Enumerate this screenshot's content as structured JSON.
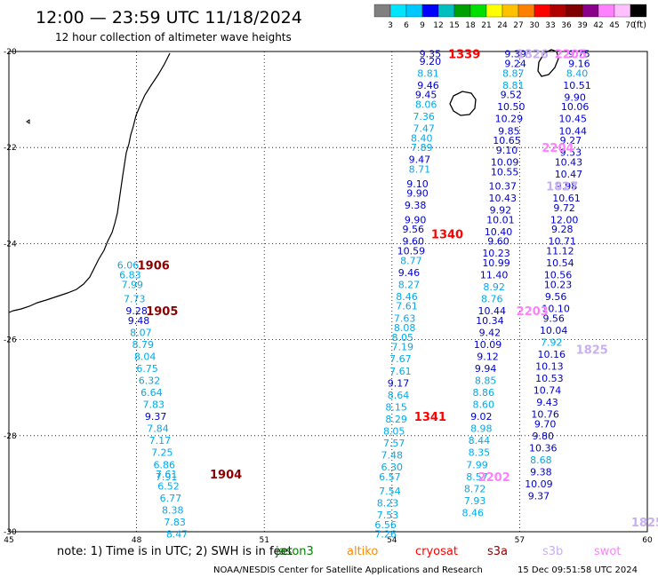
{
  "header": {
    "title": "12:00 — 23:59 UTC 11/18/2024",
    "subtitle": "12 hour collection of altimeter wave heights"
  },
  "colorbar": {
    "unit": "(ft)",
    "labels": [
      "3",
      "6",
      "9",
      "12",
      "15",
      "18",
      "21",
      "24",
      "27",
      "30",
      "33",
      "36",
      "39",
      "42",
      "45",
      "70"
    ],
    "colors": [
      "#808080",
      "#00e5ff",
      "#00c8ff",
      "#0000ff",
      "#00bfbf",
      "#00a000",
      "#00e000",
      "#ffff00",
      "#ffc000",
      "#ff8000",
      "#ff0000",
      "#b00000",
      "#800000",
      "#8b008b",
      "#ff80ff",
      "#ffc0ff",
      "#000000"
    ]
  },
  "footer": {
    "note": "note:  1) Time is in UTC; 2) SWH is in feet",
    "credit": "NOAA/NESDIS Center for Satellite Applications and Research",
    "timestamp": "15 Dec 09:51:58 UTC 2024",
    "legend": [
      {
        "name": "jason3",
        "color": "#008000"
      },
      {
        "name": "altiko",
        "color": "#ff8c00"
      },
      {
        "name": "cryosat",
        "color": "#ff0000"
      },
      {
        "name": "s3a",
        "color": "#8b0000"
      },
      {
        "name": "s3b",
        "color": "#c8b0f0"
      },
      {
        "name": "swot",
        "color": "#ff80ff"
      }
    ]
  },
  "chart_data": {
    "type": "scatter",
    "xlim": [
      45,
      60
    ],
    "ylim": [
      -30,
      -20
    ],
    "x_ticks": [
      45,
      48,
      51,
      54,
      57,
      60
    ],
    "y_ticks": [
      -20,
      -22,
      -24,
      -26,
      -28,
      -30
    ],
    "y_tick_labels": [
      "-20",
      "-22",
      "-24",
      "-26",
      "-28",
      "-30"
    ],
    "grid": true,
    "track_labels": [
      {
        "text": "1906",
        "lon": 48.4,
        "lat": -24.45,
        "color": "#8b0000"
      },
      {
        "text": "1905",
        "lon": 48.6,
        "lat": -25.4,
        "color": "#8b0000"
      },
      {
        "text": "1904",
        "lon": 50.1,
        "lat": -28.8,
        "color": "#8b0000"
      },
      {
        "text": "1339",
        "lon": 55.7,
        "lat": -20.05,
        "color": "#ff0000"
      },
      {
        "text": "1340",
        "lon": 55.3,
        "lat": -23.8,
        "color": "#ff0000"
      },
      {
        "text": "1341",
        "lon": 54.9,
        "lat": -27.6,
        "color": "#ff0000"
      },
      {
        "text": "1826",
        "lon": 57.3,
        "lat": -20.05,
        "color": "#c8b0f0"
      },
      {
        "text": "2205",
        "lon": 58.2,
        "lat": -20.05,
        "color": "#ff80ff"
      },
      {
        "text": "2204",
        "lon": 57.9,
        "lat": -22.0,
        "color": "#ff80ff"
      },
      {
        "text": "1827",
        "lon": 58.0,
        "lat": -22.8,
        "color": "#c8b0f0"
      },
      {
        "text": "2203",
        "lon": 57.3,
        "lat": -25.4,
        "color": "#ff80ff"
      },
      {
        "text": "1825",
        "lon": 58.7,
        "lat": -26.2,
        "color": "#c8b0f0"
      },
      {
        "text": "2202",
        "lon": 56.4,
        "lat": -28.85,
        "color": "#ff80ff"
      },
      {
        "text": "1825",
        "lon": 60.0,
        "lat": -29.8,
        "color": "#c8b0f0"
      }
    ],
    "series": [
      {
        "name": "1906",
        "points": [
          {
            "lon": 47.8,
            "lat": -24.45,
            "v": 6.06
          },
          {
            "lon": 47.85,
            "lat": -24.65,
            "v": 6.83
          },
          {
            "lon": 47.9,
            "lat": -24.85,
            "v": 7.99
          },
          {
            "lon": 47.95,
            "lat": -25.15,
            "v": 7.73
          },
          {
            "lon": 48.0,
            "lat": -25.4,
            "v": 9.28
          },
          {
            "lon": 48.05,
            "lat": -25.6,
            "v": 9.48
          },
          {
            "lon": 48.1,
            "lat": -25.85,
            "v": 8.07
          },
          {
            "lon": 48.15,
            "lat": -26.1,
            "v": 8.79
          },
          {
            "lon": 48.2,
            "lat": -26.35,
            "v": 8.04
          },
          {
            "lon": 48.25,
            "lat": -26.6,
            "v": 6.75
          },
          {
            "lon": 48.3,
            "lat": -26.85,
            "v": 6.32
          },
          {
            "lon": 48.35,
            "lat": -27.1,
            "v": 6.64
          },
          {
            "lon": 48.4,
            "lat": -27.35,
            "v": 7.83
          },
          {
            "lon": 48.45,
            "lat": -27.6,
            "v": 9.37
          },
          {
            "lon": 48.5,
            "lat": -27.85,
            "v": 7.84
          },
          {
            "lon": 48.55,
            "lat": -28.1,
            "v": 7.17
          },
          {
            "lon": 48.6,
            "lat": -28.35,
            "v": 7.25
          },
          {
            "lon": 48.65,
            "lat": -28.6,
            "v": 6.86
          },
          {
            "lon": 48.7,
            "lat": -28.8,
            "v": 7.61
          },
          {
            "lon": 48.7,
            "lat": -28.85,
            "v": 7.91
          },
          {
            "lon": 48.75,
            "lat": -29.05,
            "v": 6.52
          },
          {
            "lon": 48.8,
            "lat": -29.3,
            "v": 6.77
          },
          {
            "lon": 48.85,
            "lat": -29.55,
            "v": 8.38
          },
          {
            "lon": 48.9,
            "lat": -29.8,
            "v": 7.83
          },
          {
            "lon": 48.95,
            "lat": -30.05,
            "v": 8.47
          }
        ]
      },
      {
        "name": "1339-1341",
        "points": [
          {
            "lon": 54.9,
            "lat": -20.05,
            "v": 9.35
          },
          {
            "lon": 54.9,
            "lat": -20.2,
            "v": 9.2
          },
          {
            "lon": 54.85,
            "lat": -20.45,
            "v": 8.81
          },
          {
            "lon": 54.85,
            "lat": -20.7,
            "v": 9.46
          },
          {
            "lon": 54.8,
            "lat": -20.9,
            "v": 9.45
          },
          {
            "lon": 54.8,
            "lat": -21.1,
            "v": 8.06
          },
          {
            "lon": 54.75,
            "lat": -21.35,
            "v": 7.36
          },
          {
            "lon": 54.75,
            "lat": -21.6,
            "v": 7.47
          },
          {
            "lon": 54.7,
            "lat": -21.8,
            "v": 8.4
          },
          {
            "lon": 54.7,
            "lat": -22.0,
            "v": 7.89
          },
          {
            "lon": 54.65,
            "lat": -22.25,
            "v": 9.47
          },
          {
            "lon": 54.65,
            "lat": -22.45,
            "v": 8.71
          },
          {
            "lon": 54.6,
            "lat": -22.75,
            "v": 9.1
          },
          {
            "lon": 54.6,
            "lat": -22.95,
            "v": 9.9
          },
          {
            "lon": 54.55,
            "lat": -23.2,
            "v": 9.38
          },
          {
            "lon": 54.55,
            "lat": -23.5,
            "v": 9.9
          },
          {
            "lon": 54.5,
            "lat": -23.7,
            "v": 9.56
          },
          {
            "lon": 54.5,
            "lat": -23.95,
            "v": 9.6
          },
          {
            "lon": 54.45,
            "lat": -24.15,
            "v": 10.59
          },
          {
            "lon": 54.45,
            "lat": -24.35,
            "v": 8.77
          },
          {
            "lon": 54.4,
            "lat": -24.6,
            "v": 9.46
          },
          {
            "lon": 54.4,
            "lat": -24.85,
            "v": 8.27
          },
          {
            "lon": 54.35,
            "lat": -25.1,
            "v": 8.46
          },
          {
            "lon": 54.35,
            "lat": -25.3,
            "v": 7.61
          },
          {
            "lon": 54.3,
            "lat": -25.55,
            "v": 7.63
          },
          {
            "lon": 54.3,
            "lat": -25.75,
            "v": 8.08
          },
          {
            "lon": 54.25,
            "lat": -25.95,
            "v": 8.05
          },
          {
            "lon": 54.25,
            "lat": -26.15,
            "v": 7.19
          },
          {
            "lon": 54.2,
            "lat": -26.4,
            "v": 7.67
          },
          {
            "lon": 54.2,
            "lat": -26.65,
            "v": 7.61
          },
          {
            "lon": 54.15,
            "lat": -26.9,
            "v": 9.17
          },
          {
            "lon": 54.15,
            "lat": -27.15,
            "v": 8.64
          },
          {
            "lon": 54.1,
            "lat": -27.4,
            "v": 8.15
          },
          {
            "lon": 54.1,
            "lat": -27.65,
            "v": 8.29
          },
          {
            "lon": 54.05,
            "lat": -27.9,
            "v": 8.05
          },
          {
            "lon": 54.05,
            "lat": -28.15,
            "v": 7.57
          },
          {
            "lon": 54.0,
            "lat": -28.4,
            "v": 7.48
          },
          {
            "lon": 54.0,
            "lat": -28.65,
            "v": 6.3
          },
          {
            "lon": 53.95,
            "lat": -28.85,
            "v": 6.57
          },
          {
            "lon": 53.95,
            "lat": -29.15,
            "v": 7.54
          },
          {
            "lon": 53.9,
            "lat": -29.4,
            "v": 8.23
          },
          {
            "lon": 53.9,
            "lat": -29.65,
            "v": 7.53
          },
          {
            "lon": 53.85,
            "lat": -29.85,
            "v": 6.56
          },
          {
            "lon": 53.85,
            "lat": -30.05,
            "v": 7.26
          }
        ]
      },
      {
        "name": "1826 / 2205",
        "points": [
          {
            "lon": 56.9,
            "lat": -20.05,
            "v": 9.39
          },
          {
            "lon": 56.9,
            "lat": -20.25,
            "v": 9.24
          },
          {
            "lon": 56.85,
            "lat": -20.45,
            "v": 8.87
          },
          {
            "lon": 56.85,
            "lat": -20.7,
            "v": 8.81
          },
          {
            "lon": 56.8,
            "lat": -20.9,
            "v": 9.52
          },
          {
            "lon": 56.8,
            "lat": -21.15,
            "v": 10.5
          },
          {
            "lon": 56.75,
            "lat": -21.4,
            "v": 10.29
          },
          {
            "lon": 56.75,
            "lat": -21.65,
            "v": 9.85
          },
          {
            "lon": 56.7,
            "lat": -21.85,
            "v": 10.65
          },
          {
            "lon": 56.7,
            "lat": -22.05,
            "v": 9.1
          },
          {
            "lon": 56.65,
            "lat": -22.3,
            "v": 10.09
          },
          {
            "lon": 56.65,
            "lat": -22.5,
            "v": 10.55
          },
          {
            "lon": 56.6,
            "lat": -22.8,
            "v": 10.37
          },
          {
            "lon": 56.6,
            "lat": -23.05,
            "v": 10.43
          },
          {
            "lon": 56.55,
            "lat": -23.3,
            "v": 9.92
          },
          {
            "lon": 56.55,
            "lat": -23.5,
            "v": 10.01
          },
          {
            "lon": 56.5,
            "lat": -23.75,
            "v": 10.4
          },
          {
            "lon": 56.5,
            "lat": -23.95,
            "v": 9.6
          },
          {
            "lon": 56.45,
            "lat": -24.2,
            "v": 10.23
          },
          {
            "lon": 56.45,
            "lat": -24.4,
            "v": 10.99
          },
          {
            "lon": 56.4,
            "lat": -24.65,
            "v": 11.4
          },
          {
            "lon": 56.4,
            "lat": -24.9,
            "v": 8.92
          },
          {
            "lon": 56.35,
            "lat": -25.15,
            "v": 8.76
          },
          {
            "lon": 56.35,
            "lat": -25.4,
            "v": 10.44
          },
          {
            "lon": 56.3,
            "lat": -25.6,
            "v": 10.34
          },
          {
            "lon": 56.3,
            "lat": -25.85,
            "v": 9.42
          },
          {
            "lon": 56.25,
            "lat": -26.1,
            "v": 10.09
          },
          {
            "lon": 56.25,
            "lat": -26.35,
            "v": 9.12
          },
          {
            "lon": 56.2,
            "lat": -26.6,
            "v": 9.94
          },
          {
            "lon": 56.2,
            "lat": -26.85,
            "v": 8.85
          },
          {
            "lon": 56.15,
            "lat": -27.1,
            "v": 8.86
          },
          {
            "lon": 56.15,
            "lat": -27.35,
            "v": 8.6
          },
          {
            "lon": 56.1,
            "lat": -27.6,
            "v": 9.02
          },
          {
            "lon": 56.1,
            "lat": -27.85,
            "v": 8.98
          },
          {
            "lon": 56.05,
            "lat": -28.1,
            "v": 8.44
          },
          {
            "lon": 56.05,
            "lat": -28.35,
            "v": 8.35
          },
          {
            "lon": 56.0,
            "lat": -28.6,
            "v": 7.99
          },
          {
            "lon": 56.0,
            "lat": -28.85,
            "v": 8.57
          },
          {
            "lon": 55.95,
            "lat": -29.1,
            "v": 8.72
          },
          {
            "lon": 55.95,
            "lat": -29.35,
            "v": 7.93
          },
          {
            "lon": 55.9,
            "lat": -29.6,
            "v": 8.46
          }
        ]
      },
      {
        "name": "1827 / 1825",
        "points": [
          {
            "lon": 58.4,
            "lat": -20.05,
            "v": 9.75
          },
          {
            "lon": 58.4,
            "lat": -20.25,
            "v": 9.16
          },
          {
            "lon": 58.35,
            "lat": -20.45,
            "v": 8.4
          },
          {
            "lon": 58.35,
            "lat": -20.7,
            "v": 10.51
          },
          {
            "lon": 58.3,
            "lat": -20.95,
            "v": 9.9
          },
          {
            "lon": 58.3,
            "lat": -21.15,
            "v": 10.06
          },
          {
            "lon": 58.25,
            "lat": -21.4,
            "v": 10.45
          },
          {
            "lon": 58.25,
            "lat": -21.65,
            "v": 10.44
          },
          {
            "lon": 58.2,
            "lat": -21.85,
            "v": 9.27
          },
          {
            "lon": 58.2,
            "lat": -22.1,
            "v": 9.53
          },
          {
            "lon": 58.15,
            "lat": -22.3,
            "v": 10.43
          },
          {
            "lon": 58.15,
            "lat": -22.55,
            "v": 10.47
          },
          {
            "lon": 58.1,
            "lat": -22.8,
            "v": 9.98
          },
          {
            "lon": 58.1,
            "lat": -23.05,
            "v": 10.61
          },
          {
            "lon": 58.05,
            "lat": -23.25,
            "v": 9.72
          },
          {
            "lon": 58.05,
            "lat": -23.5,
            "v": 12.0
          },
          {
            "lon": 58.0,
            "lat": -23.7,
            "v": 9.28
          },
          {
            "lon": 58.0,
            "lat": -23.95,
            "v": 10.71
          },
          {
            "lon": 57.95,
            "lat": -24.15,
            "v": 11.12
          },
          {
            "lon": 57.95,
            "lat": -24.4,
            "v": 10.54
          },
          {
            "lon": 57.9,
            "lat": -24.65,
            "v": 10.56
          },
          {
            "lon": 57.9,
            "lat": -24.85,
            "v": 10.23
          },
          {
            "lon": 57.85,
            "lat": -25.1,
            "v": 9.56
          },
          {
            "lon": 57.85,
            "lat": -25.35,
            "v": 10.1
          },
          {
            "lon": 57.8,
            "lat": -25.55,
            "v": 9.56
          },
          {
            "lon": 57.8,
            "lat": -25.8,
            "v": 10.04
          },
          {
            "lon": 57.75,
            "lat": -26.05,
            "v": 7.92
          },
          {
            "lon": 57.75,
            "lat": -26.3,
            "v": 10.16
          },
          {
            "lon": 57.7,
            "lat": -26.55,
            "v": 10.13
          },
          {
            "lon": 57.7,
            "lat": -26.8,
            "v": 10.53
          },
          {
            "lon": 57.65,
            "lat": -27.05,
            "v": 10.74
          },
          {
            "lon": 57.65,
            "lat": -27.3,
            "v": 9.43
          },
          {
            "lon": 57.6,
            "lat": -27.55,
            "v": 10.76
          },
          {
            "lon": 57.6,
            "lat": -27.75,
            "v": 9.7
          },
          {
            "lon": 57.55,
            "lat": -28.0,
            "v": 9.8
          },
          {
            "lon": 57.55,
            "lat": -28.25,
            "v": 10.36
          },
          {
            "lon": 57.5,
            "lat": -28.5,
            "v": 8.68
          },
          {
            "lon": 57.5,
            "lat": -28.75,
            "v": 9.38
          },
          {
            "lon": 57.45,
            "lat": -29.0,
            "v": 10.09
          },
          {
            "lon": 57.45,
            "lat": -29.25,
            "v": 9.37
          }
        ]
      }
    ]
  }
}
